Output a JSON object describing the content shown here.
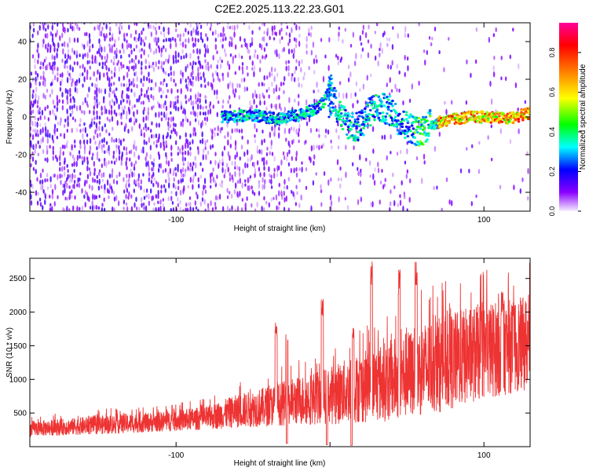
{
  "title": "C2E2.2025.113.22.23.G01",
  "chart_data": [
    {
      "type": "heatmap",
      "xlabel": "Height of straight line (km)",
      "ylabel": "Frequency (Hz)",
      "xlim": [
        -195,
        130
      ],
      "ylim": [
        -50,
        50
      ],
      "xticks": [
        -100,
        0,
        100
      ],
      "xtick_labels": [
        "-100",
        "",
        "100"
      ],
      "yticks": [
        -40,
        -20,
        0,
        20,
        40
      ],
      "colorbar": {
        "label": "Normalized spectral amplitude",
        "range": [
          0,
          0.95
        ],
        "ticks": [
          0.0,
          0.2,
          0.4,
          0.6,
          0.8
        ],
        "tick_labels": [
          "0.0",
          "0.2",
          "0.4",
          "0.6",
          "0.8"
        ],
        "colors": [
          "#f6efff",
          "#7a00ff",
          "#0000ff",
          "#00ffff",
          "#00ff00",
          "#ffff00",
          "#ff7f00",
          "#ff0000",
          "#ff0099"
        ]
      },
      "ridge": [
        [
          -68,
          0
        ],
        [
          -50,
          1
        ],
        [
          -35,
          -1
        ],
        [
          -20,
          1
        ],
        [
          -10,
          4
        ],
        [
          -3,
          9
        ],
        [
          0,
          17
        ],
        [
          3,
          8
        ],
        [
          10,
          -3
        ],
        [
          18,
          -6
        ],
        [
          28,
          5
        ],
        [
          38,
          4
        ],
        [
          48,
          -4
        ],
        [
          58,
          -8
        ],
        [
          65,
          -4
        ],
        [
          75,
          -2
        ],
        [
          90,
          0
        ],
        [
          105,
          0
        ],
        [
          115,
          -1
        ],
        [
          130,
          2
        ]
      ]
    },
    {
      "type": "line",
      "xlabel": "Height of straight line (km)",
      "ylabel": "SNR (10 * v/v)",
      "xlim": [
        -195,
        130
      ],
      "ylim": [
        0,
        2800
      ],
      "xticks": [
        -100,
        0,
        100
      ],
      "xtick_labels": [
        "-100",
        "",
        "100"
      ],
      "yticks": [
        500,
        1000,
        1500,
        2000,
        2500
      ],
      "line_color": "#ee3333",
      "envelope": [
        [
          -195,
          150,
          380
        ],
        [
          -170,
          170,
          420
        ],
        [
          -140,
          190,
          480
        ],
        [
          -110,
          220,
          520
        ],
        [
          -80,
          250,
          600
        ],
        [
          -60,
          280,
          780
        ],
        [
          -40,
          300,
          900
        ],
        [
          -20,
          320,
          1050
        ],
        [
          0,
          330,
          1200
        ],
        [
          20,
          350,
          1400
        ],
        [
          40,
          380,
          1600
        ],
        [
          60,
          450,
          1850
        ],
        [
          80,
          550,
          2000
        ],
        [
          100,
          700,
          2150
        ],
        [
          120,
          800,
          2200
        ],
        [
          130,
          850,
          2250
        ]
      ],
      "spikes": [
        {
          "x": -35,
          "y": 1850
        },
        {
          "x": -28,
          "y": 1750
        },
        {
          "x": -5,
          "y": 2250
        },
        {
          "x": 15,
          "y": 1800
        },
        {
          "x": 27,
          "y": 2800
        },
        {
          "x": 45,
          "y": 2650
        },
        {
          "x": 56,
          "y": 2800
        },
        {
          "x": 112,
          "y": 2350
        }
      ],
      "dips": [
        {
          "x": -28,
          "y": 50
        },
        {
          "x": -2,
          "y": 30
        },
        {
          "x": 14,
          "y": 20
        }
      ]
    }
  ]
}
